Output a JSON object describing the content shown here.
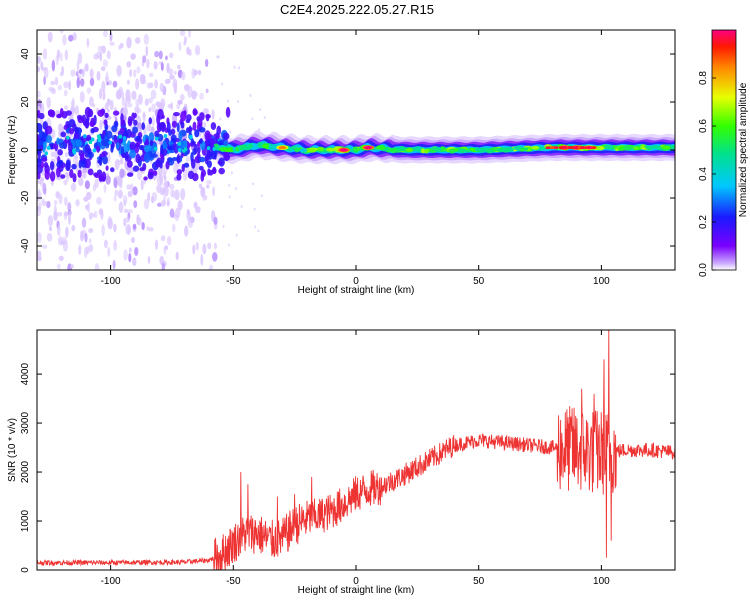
{
  "figure": {
    "title": "C2E4.2025.222.05.27.R15"
  },
  "chart_data": [
    {
      "type": "heatmap",
      "title": "C2E4.2025.222.05.27.R15",
      "xlabel": "Height of straight line (km)",
      "ylabel": "Frequency (Hz)",
      "xlim": [
        -130,
        130
      ],
      "ylim": [
        -50,
        50
      ],
      "xticks": [
        -100,
        -50,
        0,
        50,
        100
      ],
      "yticks": [
        -40,
        -20,
        0,
        20,
        40
      ],
      "colorbar": {
        "label": "Normalized spectral amplitude",
        "range": [
          0,
          1
        ],
        "ticks": [
          "0.0",
          "0.2",
          "0.4",
          "0.6",
          "0.8"
        ],
        "colormap": "rainbow"
      },
      "band": {
        "center_hz": [
          {
            "x": -130,
            "y": 2
          },
          {
            "x": -100,
            "y": 2
          },
          {
            "x": -60,
            "y": 2
          },
          {
            "x": -50,
            "y": 0
          },
          {
            "x": -40,
            "y": 2
          },
          {
            "x": -30,
            "y": 1
          },
          {
            "x": -20,
            "y": 0
          },
          {
            "x": -10,
            "y": 0
          },
          {
            "x": 0,
            "y": 0
          },
          {
            "x": 5,
            "y": 1
          },
          {
            "x": 20,
            "y": 0
          },
          {
            "x": 50,
            "y": 0
          },
          {
            "x": 80,
            "y": 1
          },
          {
            "x": 90,
            "y": 1
          },
          {
            "x": 100,
            "y": 1
          },
          {
            "x": 130,
            "y": 1
          }
        ],
        "peaks": [
          {
            "x": -5,
            "amplitude": 1.0
          },
          {
            "x": 5,
            "amplitude": 1.0
          },
          {
            "x": -30,
            "amplitude": 0.85
          },
          {
            "x": 85,
            "amplitude": 1.0
          },
          {
            "x": 90,
            "amplitude": 1.0
          },
          {
            "x": 95,
            "amplitude": 0.9
          }
        ]
      }
    },
    {
      "type": "line",
      "xlabel": "Height of straight line (km)",
      "ylabel": "SNR (10 * v/v)",
      "xlim": [
        -130,
        130
      ],
      "ylim": [
        0,
        4900
      ],
      "xticks": [
        -100,
        -50,
        0,
        50,
        100
      ],
      "yticks": [
        0,
        1000,
        2000,
        3000,
        4000
      ],
      "series": [
        {
          "color": "#ee3333",
          "trend": [
            {
              "x": -130,
              "y": 150
            },
            {
              "x": -100,
              "y": 150
            },
            {
              "x": -70,
              "y": 160
            },
            {
              "x": -60,
              "y": 200
            },
            {
              "x": -55,
              "y": 300
            },
            {
              "x": -50,
              "y": 550
            },
            {
              "x": -45,
              "y": 750
            },
            {
              "x": -40,
              "y": 750
            },
            {
              "x": -35,
              "y": 600
            },
            {
              "x": -30,
              "y": 650
            },
            {
              "x": -25,
              "y": 900
            },
            {
              "x": -20,
              "y": 1050
            },
            {
              "x": -15,
              "y": 1100
            },
            {
              "x": -10,
              "y": 1200
            },
            {
              "x": -5,
              "y": 1350
            },
            {
              "x": 0,
              "y": 1550
            },
            {
              "x": 5,
              "y": 1650
            },
            {
              "x": 10,
              "y": 1700
            },
            {
              "x": 20,
              "y": 1950
            },
            {
              "x": 30,
              "y": 2250
            },
            {
              "x": 40,
              "y": 2550
            },
            {
              "x": 50,
              "y": 2650
            },
            {
              "x": 60,
              "y": 2600
            },
            {
              "x": 70,
              "y": 2550
            },
            {
              "x": 80,
              "y": 2500
            },
            {
              "x": 90,
              "y": 2450
            },
            {
              "x": 100,
              "y": 2400
            },
            {
              "x": 110,
              "y": 2450
            },
            {
              "x": 120,
              "y": 2450
            },
            {
              "x": 130,
              "y": 2400
            }
          ],
          "spikes": [
            {
              "x": -47,
              "y": 2000
            },
            {
              "x": -44,
              "y": 1750
            },
            {
              "x": -32,
              "y": 1500
            },
            {
              "x": -25,
              "y": 1550
            },
            {
              "x": -18,
              "y": 1900
            },
            {
              "x": 88,
              "y": 3300
            },
            {
              "x": 92,
              "y": 3700
            },
            {
              "x": 97,
              "y": 3600
            },
            {
              "x": 101,
              "y": 4300
            },
            {
              "x": 103,
              "y": 4900
            },
            {
              "x": 102,
              "y": 250
            },
            {
              "x": 104,
              "y": 600
            }
          ]
        }
      ]
    }
  ]
}
